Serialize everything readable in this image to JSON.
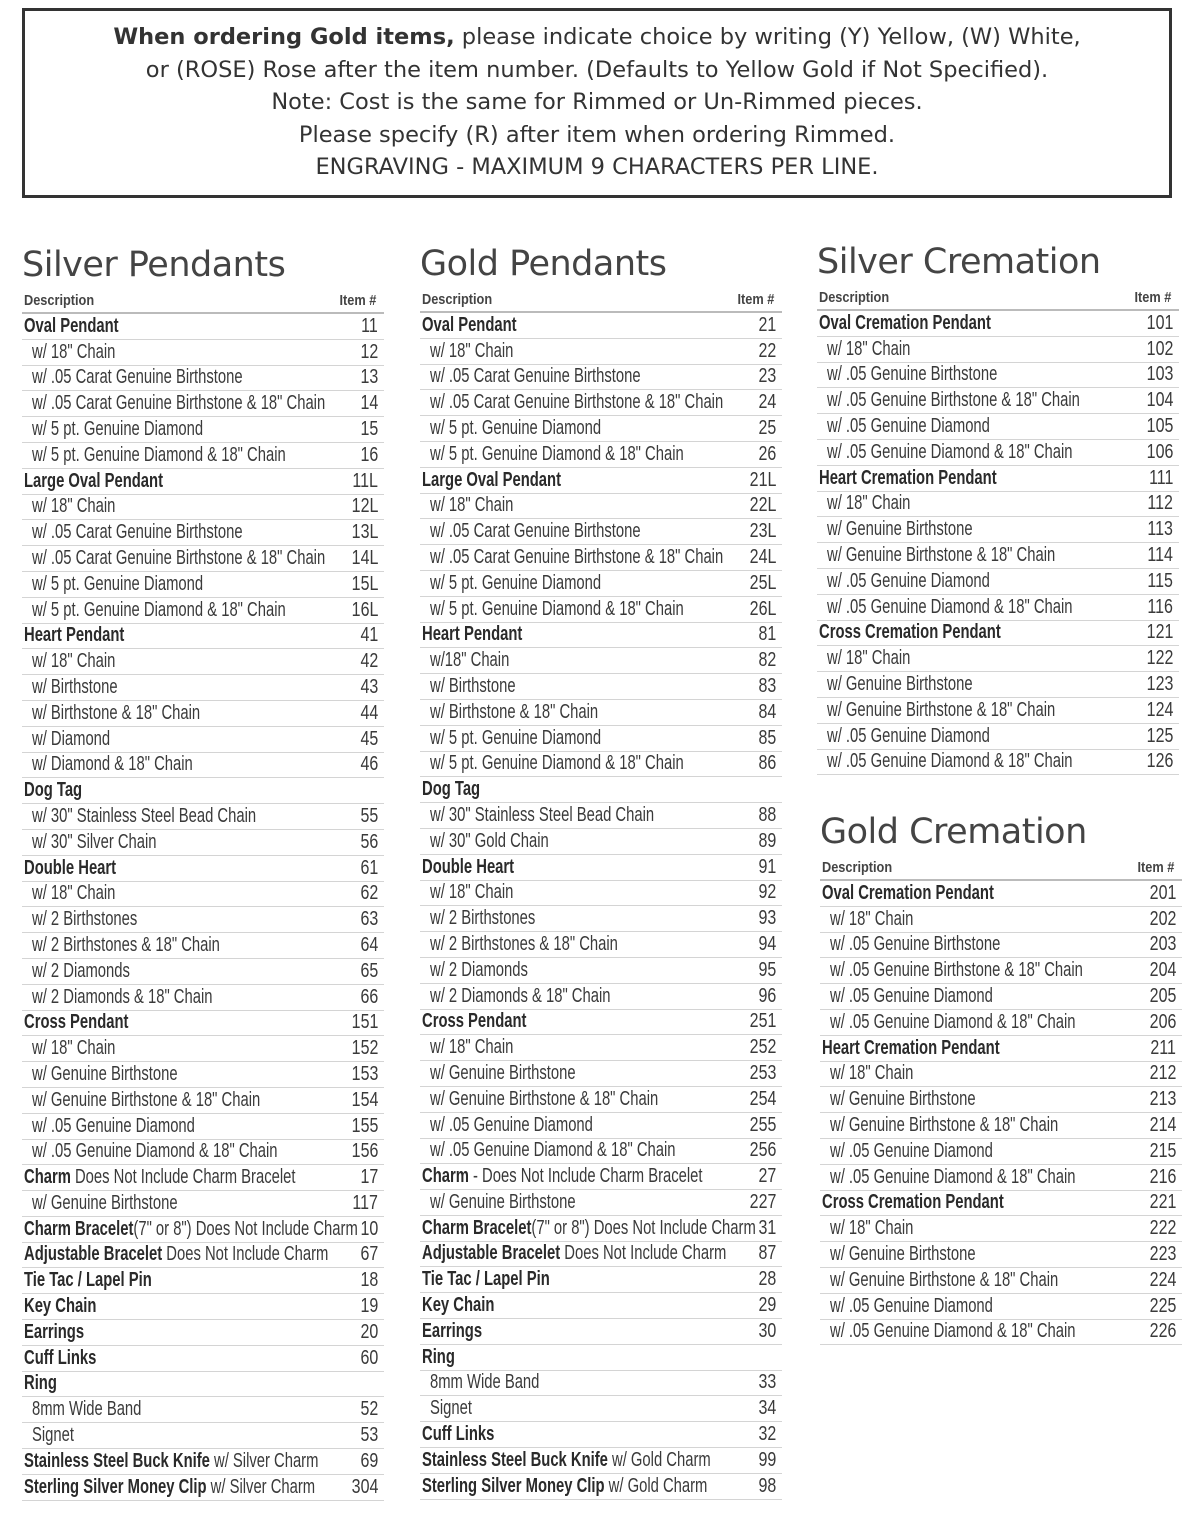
{
  "notice": {
    "line1_bold": "When ordering Gold items,",
    "line1_rest": " please indicate choice by writing (Y) Yellow, (W) White,",
    "line2": "or (ROSE) Rose after the item number. (Defaults to Yellow Gold if Not Specified).",
    "line3": "Note: Cost is the same for Rimmed or Un-Rimmed pieces.",
    "line4": "Please specify (R) after item when ordering Rimmed.",
    "line5": "ENGRAVING - MAXIMUM 9 CHARACTERS PER LINE."
  },
  "column_headers": {
    "description": "Description",
    "item": "Item #"
  },
  "sections": [
    {
      "title": "Silver Pendants",
      "rows": [
        [
          "Oval Pendant",
          "",
          "11",
          0
        ],
        [
          "",
          "w/ 18\" Chain",
          "12",
          1
        ],
        [
          "",
          "w/ .05 Carat Genuine Birthstone",
          "13",
          1
        ],
        [
          "",
          "w/ .05 Carat Genuine Birthstone & 18\" Chain",
          "14",
          1
        ],
        [
          "",
          "w/ 5 pt. Genuine Diamond",
          "15",
          1
        ],
        [
          "",
          "w/ 5 pt. Genuine Diamond & 18\" Chain",
          "16",
          1
        ],
        [
          "Large Oval Pendant",
          "",
          "11L",
          0
        ],
        [
          "",
          "w/ 18\" Chain",
          "12L",
          1
        ],
        [
          "",
          "w/ .05 Carat Genuine Birthstone",
          "13L",
          1
        ],
        [
          "",
          "w/ .05 Carat Genuine Birthstone & 18\" Chain",
          "14L",
          1
        ],
        [
          "",
          "w/ 5 pt. Genuine Diamond",
          "15L",
          1
        ],
        [
          "",
          "w/ 5 pt. Genuine Diamond & 18\" Chain",
          "16L",
          1
        ],
        [
          "Heart Pendant",
          "",
          "41",
          0
        ],
        [
          "",
          "w/ 18\" Chain",
          "42",
          1
        ],
        [
          "",
          "w/ Birthstone",
          "43",
          1
        ],
        [
          "",
          "w/ Birthstone & 18\" Chain",
          "44",
          1
        ],
        [
          "",
          "w/ Diamond",
          "45",
          1
        ],
        [
          "",
          "w/ Diamond & 18\" Chain",
          "46",
          1
        ],
        [
          "Dog Tag",
          "",
          "",
          0
        ],
        [
          "",
          "w/ 30\" Stainless Steel Bead Chain",
          "55",
          1
        ],
        [
          "",
          "w/ 30\" Silver Chain",
          "56",
          1
        ],
        [
          "Double Heart",
          "",
          "61",
          0
        ],
        [
          "",
          "w/ 18\" Chain",
          "62",
          1
        ],
        [
          "",
          "w/ 2 Birthstones",
          "63",
          1
        ],
        [
          "",
          "w/ 2 Birthstones & 18\" Chain",
          "64",
          1
        ],
        [
          "",
          "w/ 2 Diamonds",
          "65",
          1
        ],
        [
          "",
          "w/ 2 Diamonds & 18\" Chain",
          "66",
          1
        ],
        [
          "Cross Pendant",
          "",
          "151",
          0
        ],
        [
          "",
          "w/ 18\" Chain",
          "152",
          1
        ],
        [
          "",
          "w/ Genuine Birthstone",
          "153",
          1
        ],
        [
          "",
          "w/ Genuine Birthstone & 18\" Chain",
          "154",
          1
        ],
        [
          "",
          "w/ .05 Genuine Diamond",
          "155",
          1
        ],
        [
          "",
          "w/ .05 Genuine Diamond & 18\" Chain",
          "156",
          1
        ],
        [
          "Charm",
          " Does Not Include Charm Bracelet",
          "17",
          0
        ],
        [
          "",
          "w/ Genuine Birthstone",
          "117",
          1
        ],
        [
          "Charm Bracelet",
          "(7\" or 8\") Does Not Include Charm",
          "10",
          0
        ],
        [
          "Adjustable Bracelet",
          " Does Not Include Charm",
          "67",
          0
        ],
        [
          "Tie Tac / Lapel Pin",
          "",
          "18",
          0
        ],
        [
          "Key Chain",
          "",
          "19",
          0
        ],
        [
          "Earrings",
          "",
          "20",
          0
        ],
        [
          "Cuff Links",
          "",
          "60",
          0
        ],
        [
          "Ring",
          "",
          "",
          0
        ],
        [
          "",
          "8mm Wide Band",
          "52",
          1
        ],
        [
          "",
          "Signet",
          "53",
          1
        ],
        [
          "Stainless Steel Buck Knife",
          " w/ Silver Charm",
          "69",
          0
        ],
        [
          "Sterling Silver Money Clip",
          " w/ Silver Charm",
          "304",
          0
        ]
      ]
    },
    {
      "title": "Gold Pendants",
      "rows": [
        [
          "Oval Pendant",
          "",
          "21",
          0
        ],
        [
          "",
          "w/ 18\" Chain",
          "22",
          1
        ],
        [
          "",
          "w/ .05 Carat Genuine Birthstone",
          "23",
          1
        ],
        [
          "",
          "w/ .05 Carat Genuine Birthstone & 18\" Chain",
          "24",
          1
        ],
        [
          "",
          "w/ 5 pt. Genuine Diamond",
          "25",
          1
        ],
        [
          "",
          "w/ 5 pt. Genuine Diamond & 18\" Chain",
          "26",
          1
        ],
        [
          "Large Oval Pendant",
          "",
          "21L",
          0
        ],
        [
          "",
          "w/ 18\" Chain",
          "22L",
          1
        ],
        [
          "",
          "w/ .05 Carat Genuine Birthstone",
          "23L",
          1
        ],
        [
          "",
          "w/ .05 Carat Genuine Birthstone & 18\" Chain",
          "24L",
          1
        ],
        [
          "",
          "w/ 5 pt. Genuine Diamond",
          "25L",
          1
        ],
        [
          "",
          "w/ 5 pt. Genuine Diamond & 18\" Chain",
          "26L",
          1
        ],
        [
          "Heart Pendant",
          "",
          "81",
          0
        ],
        [
          "",
          "w/18\" Chain",
          "82",
          1
        ],
        [
          "",
          "w/ Birthstone",
          "83",
          1
        ],
        [
          "",
          "w/ Birthstone & 18\" Chain",
          "84",
          1
        ],
        [
          "",
          "w/ 5 pt. Genuine Diamond",
          "85",
          1
        ],
        [
          "",
          "w/ 5 pt. Genuine Diamond & 18\" Chain",
          "86",
          1
        ],
        [
          "Dog Tag",
          "",
          "",
          0
        ],
        [
          "",
          "w/ 30\" Stainless Steel Bead Chain",
          "88",
          1
        ],
        [
          "",
          "w/ 30\" Gold Chain",
          "89",
          1
        ],
        [
          "Double Heart",
          "",
          "91",
          0
        ],
        [
          "",
          "w/ 18\" Chain",
          "92",
          1
        ],
        [
          "",
          "w/ 2 Birthstones",
          "93",
          1
        ],
        [
          "",
          "w/ 2 Birthstones & 18\" Chain",
          "94",
          1
        ],
        [
          "",
          "w/ 2 Diamonds",
          "95",
          1
        ],
        [
          "",
          "w/ 2 Diamonds & 18\" Chain",
          "96",
          1
        ],
        [
          "Cross Pendant",
          "",
          "251",
          0
        ],
        [
          "",
          "w/ 18\" Chain",
          "252",
          1
        ],
        [
          "",
          "w/ Genuine Birthstone",
          "253",
          1
        ],
        [
          "",
          "w/ Genuine Birthstone & 18\" Chain",
          "254",
          1
        ],
        [
          "",
          "w/ .05 Genuine Diamond",
          "255",
          1
        ],
        [
          "",
          "w/ .05 Genuine Diamond & 18\" Chain",
          "256",
          1
        ],
        [
          "Charm",
          " - Does Not Include Charm Bracelet",
          "27",
          0
        ],
        [
          "",
          "w/ Genuine Birthstone",
          "227",
          1
        ],
        [
          "Charm Bracelet",
          "(7\" or 8\") Does Not Include Charm",
          "31",
          0
        ],
        [
          "Adjustable Bracelet",
          " Does Not Include Charm",
          "87",
          0
        ],
        [
          "Tie Tac / Lapel Pin",
          "",
          "28",
          0
        ],
        [
          "Key Chain",
          "",
          "29",
          0
        ],
        [
          "Earrings",
          "",
          "30",
          0
        ],
        [
          "Ring",
          "",
          "",
          0
        ],
        [
          "",
          "8mm Wide Band",
          "33",
          1
        ],
        [
          "",
          "Signet",
          "34",
          1
        ],
        [
          "Cuff Links",
          "",
          "32",
          0
        ],
        [
          "Stainless Steel Buck Knife",
          " w/ Gold Charm",
          "99",
          0
        ],
        [
          "Sterling Silver Money Clip",
          " w/ Gold Charm",
          "98",
          0
        ]
      ]
    },
    {
      "title": "Silver Cremation",
      "rows": [
        [
          "Oval Cremation Pendant",
          "",
          "101",
          0
        ],
        [
          "",
          "w/ 18\" Chain",
          "102",
          1
        ],
        [
          "",
          "w/ .05 Genuine Birthstone",
          "103",
          1
        ],
        [
          "",
          "w/ .05 Genuine Birthstone & 18\" Chain",
          "104",
          1
        ],
        [
          "",
          "w/ .05 Genuine Diamond",
          "105",
          1
        ],
        [
          "",
          "w/ .05 Genuine Diamond & 18\" Chain",
          "106",
          1
        ],
        [
          "Heart Cremation Pendant",
          "",
          "111",
          0
        ],
        [
          "",
          "w/ 18\" Chain",
          "112",
          1
        ],
        [
          "",
          "w/ Genuine Birthstone",
          "113",
          1
        ],
        [
          "",
          "w/ Genuine Birthstone & 18\" Chain",
          "114",
          1
        ],
        [
          "",
          "w/ .05 Genuine Diamond",
          "115",
          1
        ],
        [
          "",
          "w/ .05 Genuine Diamond & 18\" Chain",
          "116",
          1
        ],
        [
          "Cross Cremation Pendant",
          "",
          "121",
          0
        ],
        [
          "",
          "w/ 18\" Chain",
          "122",
          1
        ],
        [
          "",
          "w/ Genuine Birthstone",
          "123",
          1
        ],
        [
          "",
          "w/ Genuine Birthstone & 18\" Chain",
          "124",
          1
        ],
        [
          "",
          "w/ .05 Genuine Diamond",
          "125",
          1
        ],
        [
          "",
          "w/ .05 Genuine Diamond & 18\" Chain",
          "126",
          1
        ]
      ]
    },
    {
      "title": "Gold Cremation",
      "rows": [
        [
          "Oval Cremation Pendant",
          "",
          "201",
          0
        ],
        [
          "",
          "w/ 18\" Chain",
          "202",
          1
        ],
        [
          "",
          "w/ .05 Genuine Birthstone",
          "203",
          1
        ],
        [
          "",
          "w/ .05 Genuine Birthstone & 18\" Chain",
          "204",
          1
        ],
        [
          "",
          "w/ .05 Genuine Diamond",
          "205",
          1
        ],
        [
          "",
          "w/ .05 Genuine Diamond & 18\" Chain",
          "206",
          1
        ],
        [
          "Heart Cremation Pendant",
          "",
          "211",
          0
        ],
        [
          "",
          "w/ 18\" Chain",
          "212",
          1
        ],
        [
          "",
          "w/ Genuine Birthstone",
          "213",
          1
        ],
        [
          "",
          "w/ Genuine Birthstone & 18\" Chain",
          "214",
          1
        ],
        [
          "",
          "w/ .05 Genuine Diamond",
          "215",
          1
        ],
        [
          "",
          "w/ .05 Genuine Diamond & 18\" Chain",
          "216",
          1
        ],
        [
          "Cross Cremation Pendant",
          "",
          "221",
          0
        ],
        [
          "",
          "w/ 18\" Chain",
          "222",
          1
        ],
        [
          "",
          "w/ Genuine Birthstone",
          "223",
          1
        ],
        [
          "",
          "w/ Genuine Birthstone & 18\" Chain",
          "224",
          1
        ],
        [
          "",
          "w/ .05 Genuine Diamond",
          "225",
          1
        ],
        [
          "",
          "w/ .05 Genuine Diamond & 18\" Chain",
          "226",
          1
        ]
      ]
    }
  ]
}
